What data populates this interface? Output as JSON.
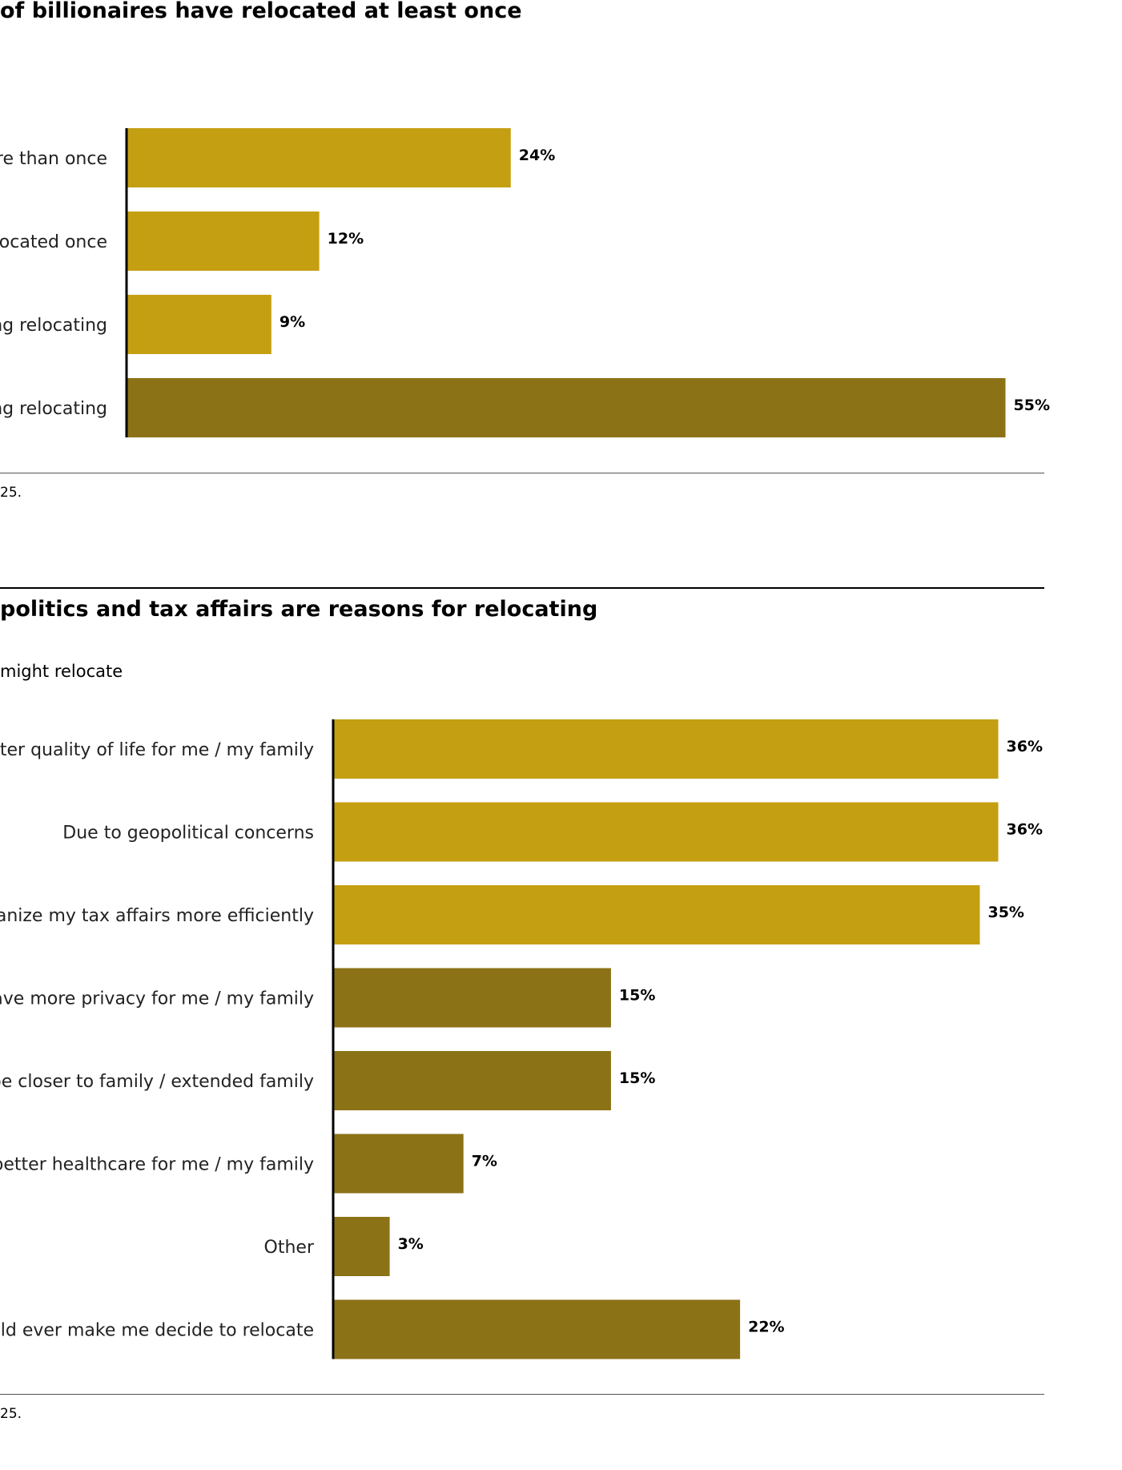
{
  "colors": {
    "light": "#c59f12",
    "dark": "#8b7217",
    "axis": "#000000"
  },
  "top_panel": {
    "title": "of billionaires have relocated at least once",
    "source": "25."
  },
  "bottom_panel": {
    "title": "politics and tax affairs are reasons for relocating",
    "subtitle": "might relocate",
    "source": "25."
  },
  "chart_data": [
    {
      "type": "bar",
      "orientation": "horizontal",
      "title": "of billionaires have relocated at least once",
      "categories": [
        "ore than once",
        "elocated once",
        "ng relocating",
        "ng relocating"
      ],
      "values": [
        24,
        12,
        9,
        55
      ],
      "value_labels": [
        "24%",
        "12%",
        "9%",
        "55%"
      ],
      "bar_colors": [
        "light",
        "light",
        "light",
        "dark"
      ],
      "xlim": [
        0,
        55
      ],
      "grid": false,
      "legend": "none"
    },
    {
      "type": "bar",
      "orientation": "horizontal",
      "title": "politics and tax affairs are reasons for relocating",
      "subtitle": "might relocate",
      "categories": [
        "better quality of life for me / my family",
        "Due to geopolitical concerns",
        "organize my tax affairs more efficiently",
        "o have more privacy for me / my family",
        "To be closer to family / extended family",
        "ve better healthcare for me / my family",
        "Other",
        "would ever make me decide to relocate"
      ],
      "values": [
        36,
        36,
        35,
        15,
        15,
        7,
        3,
        22
      ],
      "value_labels": [
        "36%",
        "36%",
        "35%",
        "15%",
        "15%",
        "7%",
        "3%",
        "22%"
      ],
      "bar_colors": [
        "light",
        "light",
        "light",
        "dark",
        "dark",
        "dark",
        "dark",
        "dark"
      ],
      "xlim": [
        0,
        36
      ],
      "grid": false,
      "legend": "none"
    }
  ]
}
